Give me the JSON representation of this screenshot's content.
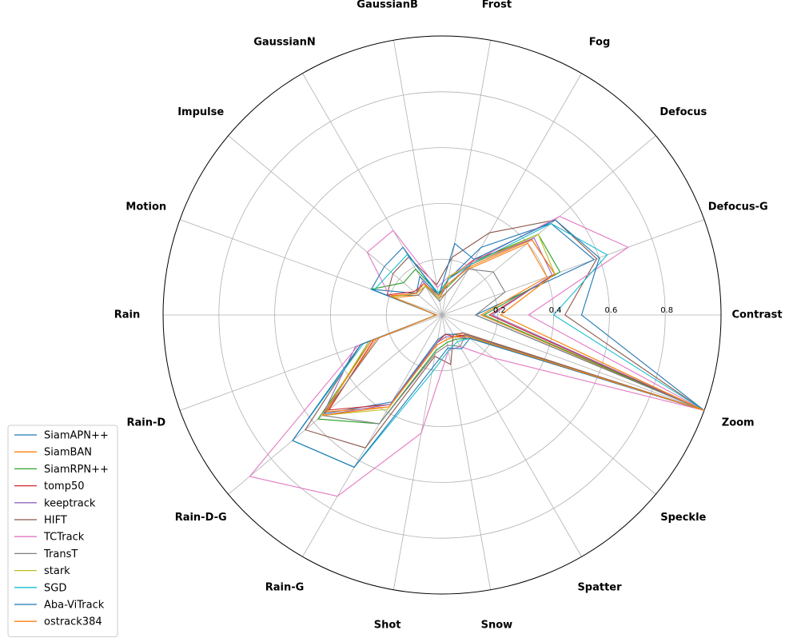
{
  "chart_data": {
    "type": "radar",
    "categories": [
      "Contrast",
      "Defocus-G",
      "Defocus",
      "Fog",
      "Frost",
      "GaussianB",
      "GaussianN",
      "Impulse",
      "Motion",
      "Rain",
      "Rain-D",
      "Rain-D-G",
      "Rain-G",
      "Shot",
      "Snow",
      "Spatter",
      "Speckle",
      "Zoom"
    ],
    "rlim": [
      0,
      1
    ],
    "rticks": [
      0.2,
      0.4,
      0.6,
      0.8
    ],
    "rtick_labels": [
      "0.2",
      "0.4",
      "0.6",
      "0.8"
    ],
    "grid": true,
    "legend_position": "lower-left",
    "series": [
      {
        "name": "SiamAPN++",
        "color": "#1f77b4",
        "values": [
          0.12,
          0.58,
          0.51,
          0.28,
          0.13,
          0.07,
          0.16,
          0.12,
          0.27,
          0.02,
          0.28,
          0.55,
          0.36,
          0.09,
          0.07,
          0.08,
          0.12,
          1.0
        ]
      },
      {
        "name": "SiamBAN",
        "color": "#ff7f0e",
        "values": [
          0.14,
          0.4,
          0.4,
          0.19,
          0.08,
          0.06,
          0.12,
          0.11,
          0.18,
          0.02,
          0.25,
          0.54,
          0.38,
          0.1,
          0.08,
          0.09,
          0.1,
          1.0
        ]
      },
      {
        "name": "SiamRPN++",
        "color": "#2ca02c",
        "values": [
          0.15,
          0.45,
          0.45,
          0.22,
          0.1,
          0.08,
          0.19,
          0.18,
          0.27,
          0.02,
          0.27,
          0.58,
          0.45,
          0.13,
          0.1,
          0.1,
          0.13,
          1.0
        ]
      },
      {
        "name": "tomp50",
        "color": "#d62728",
        "values": [
          0.17,
          0.43,
          0.42,
          0.23,
          0.13,
          0.06,
          0.13,
          0.13,
          0.21,
          0.02,
          0.26,
          0.53,
          0.37,
          0.1,
          0.07,
          0.09,
          0.11,
          1.0
        ]
      },
      {
        "name": "keeptrack",
        "color": "#9467bd",
        "values": [
          0.18,
          0.42,
          0.43,
          0.21,
          0.11,
          0.06,
          0.14,
          0.12,
          0.2,
          0.02,
          0.33,
          0.56,
          0.37,
          0.1,
          0.08,
          0.09,
          0.13,
          1.0
        ]
      },
      {
        "name": "HIFT",
        "color": "#8c564b",
        "values": [
          0.44,
          0.59,
          0.53,
          0.34,
          0.21,
          0.11,
          0.24,
          0.23,
          0.21,
          0.02,
          0.31,
          0.64,
          0.55,
          0.15,
          0.18,
          0.08,
          0.1,
          1.0
        ]
      },
      {
        "name": "TCTrack",
        "color": "#e377c2",
        "values": [
          0.31,
          0.71,
          0.55,
          0.22,
          0.14,
          0.1,
          0.35,
          0.35,
          0.2,
          0.02,
          0.32,
          0.9,
          0.75,
          0.43,
          0.13,
          0.13,
          0.24,
          1.0
        ]
      },
      {
        "name": "TransT",
        "color": "#7f7f7f",
        "values": [
          0.12,
          0.24,
          0.24,
          0.19,
          0.08,
          0.05,
          0.12,
          0.11,
          0.2,
          0.02,
          0.24,
          0.56,
          0.45,
          0.14,
          0.11,
          0.13,
          0.11,
          1.0
        ]
      },
      {
        "name": "stark",
        "color": "#bcbd22",
        "values": [
          0.21,
          0.43,
          0.45,
          0.21,
          0.14,
          0.06,
          0.12,
          0.12,
          0.19,
          0.02,
          0.28,
          0.56,
          0.39,
          0.11,
          0.09,
          0.09,
          0.12,
          1.0
        ]
      },
      {
        "name": "SGD",
        "color": "#17becf",
        "values": [
          0.4,
          0.63,
          0.51,
          0.21,
          0.13,
          0.08,
          0.25,
          0.24,
          0.26,
          0.02,
          0.3,
          0.7,
          0.63,
          0.21,
          0.13,
          0.11,
          0.13,
          1.0
        ]
      },
      {
        "name": "Aba-ViTrack",
        "color": "#1f77b4",
        "values": [
          0.5,
          0.6,
          0.53,
          0.23,
          0.26,
          0.07,
          0.28,
          0.27,
          0.27,
          0.02,
          0.31,
          0.7,
          0.63,
          0.19,
          0.12,
          0.14,
          0.13,
          1.0
        ]
      },
      {
        "name": "ostrack384",
        "color": "#ff7f0e",
        "values": [
          0.21,
          0.43,
          0.42,
          0.2,
          0.11,
          0.07,
          0.13,
          0.12,
          0.2,
          0.02,
          0.27,
          0.56,
          0.38,
          0.11,
          0.09,
          0.09,
          0.12,
          1.0
        ]
      }
    ]
  }
}
